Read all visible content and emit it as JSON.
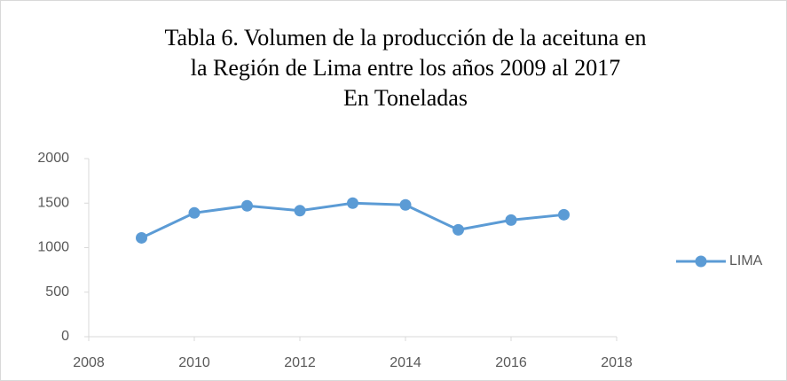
{
  "chart_data": {
    "type": "line",
    "title": [
      "Tabla 6. Volumen de la producción de la aceituna en",
      "la Región de Lima entre los años 2009 al 2017",
      "En Toneladas"
    ],
    "x": [
      2009,
      2010,
      2011,
      2012,
      2013,
      2014,
      2015,
      2016,
      2017
    ],
    "series": [
      {
        "name": "LIMA",
        "color": "#5b9bd5",
        "values": [
          1110,
          1390,
          1470,
          1415,
          1500,
          1480,
          1200,
          1310,
          1370
        ]
      }
    ],
    "xlim": [
      2008,
      2018
    ],
    "xticks": [
      2008,
      2010,
      2012,
      2014,
      2016,
      2018
    ],
    "ylim": [
      0,
      2000
    ],
    "yticks": [
      0,
      500,
      1000,
      1500,
      2000
    ],
    "grid": false,
    "legend": "right"
  }
}
